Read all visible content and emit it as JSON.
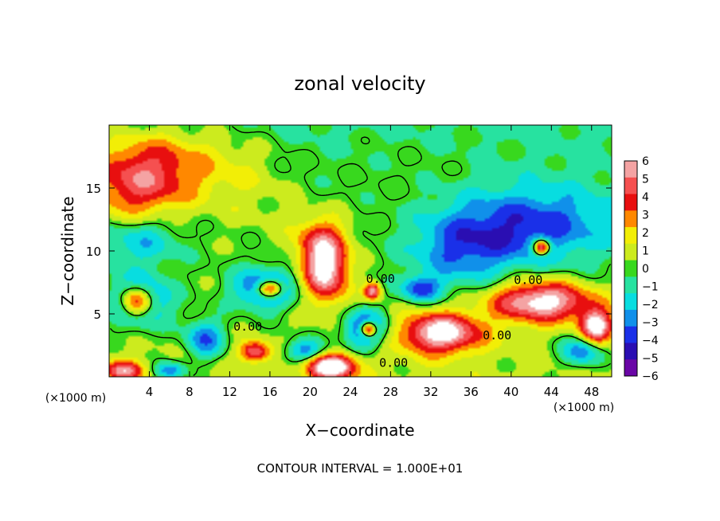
{
  "chart_data": {
    "type": "heatmap",
    "title": "zonal velocity",
    "xlabel": "X−coordinate",
    "ylabel": "Z−coordinate",
    "x_unit_label": "(×1000 m)",
    "x_unit_label_left": "(×1000 m)",
    "footer": "CONTOUR INTERVAL = 1.000E+01",
    "xlim": [
      0,
      50
    ],
    "ylim": [
      0,
      20
    ],
    "x_ticks": [
      4,
      8,
      12,
      16,
      20,
      24,
      28,
      32,
      36,
      40,
      44,
      48
    ],
    "y_ticks": [
      5,
      10,
      15
    ],
    "colorbar": {
      "levels": [
        6,
        5,
        4,
        3,
        2,
        1,
        0,
        -1,
        -2,
        -3,
        -4,
        -5,
        -6
      ],
      "labels": [
        "6",
        "5",
        "4",
        "3",
        "2",
        "1",
        "0",
        "−1",
        "−2",
        "−3",
        "−4",
        "−5",
        "−6"
      ],
      "colors": [
        "#f4a3a3",
        "#f55050",
        "#e80f0f",
        "#ff8800",
        "#f2ee06",
        "#cceb1e",
        "#38d81e",
        "#27e2a0",
        "#08dde0",
        "#1090ea",
        "#1a30e8",
        "#2a0eb2",
        "#6a06a6"
      ]
    },
    "contour_labels": [
      {
        "text": "0.00",
        "x": 27,
        "z": 7.8
      },
      {
        "text": "0.00",
        "x": 41.7,
        "z": 7.7
      },
      {
        "text": "0.00",
        "x": 13.8,
        "z": 4
      },
      {
        "text": "0.00",
        "x": 38.6,
        "z": 3.3
      },
      {
        "text": "0.00",
        "x": 28.3,
        "z": 1.1
      }
    ],
    "field_features": [
      {
        "x": 2.5,
        "z": 15,
        "value": 4,
        "sx": 5,
        "sz": 3.5
      },
      {
        "x": 6,
        "z": 17,
        "value": 3,
        "sx": 7,
        "sz": 3
      },
      {
        "x": 3,
        "z": 11,
        "value": -3,
        "sx": 4,
        "sz": 2
      },
      {
        "x": 3,
        "z": 6,
        "value": -5,
        "sx": 3,
        "sz": 2
      },
      {
        "x": 2.7,
        "z": 6,
        "value": 8,
        "sx": 1.6,
        "sz": 1.2
      },
      {
        "x": 9.5,
        "z": 3,
        "value": -4,
        "sx": 2,
        "sz": 1.6
      },
      {
        "x": 15.5,
        "z": 7,
        "value": -5,
        "sx": 3,
        "sz": 1.6
      },
      {
        "x": 16,
        "z": 7,
        "value": 8,
        "sx": 1.3,
        "sz": 0.7
      },
      {
        "x": 21.5,
        "z": 8.5,
        "value": 7,
        "sx": 2.2,
        "sz": 2.5
      },
      {
        "x": 21,
        "z": 11,
        "value": 3,
        "sx": 3,
        "sz": 2
      },
      {
        "x": 25.5,
        "z": 3.8,
        "value": -5,
        "sx": 2.2,
        "sz": 1.5
      },
      {
        "x": 25.8,
        "z": 3.8,
        "value": 8,
        "sx": 0.8,
        "sz": 0.6
      },
      {
        "x": 26.2,
        "z": 6.8,
        "value": 6,
        "sx": 0.8,
        "sz": 0.7
      },
      {
        "x": 33,
        "z": 3.5,
        "value": 7,
        "sx": 4,
        "sz": 1.6
      },
      {
        "x": 43,
        "z": 6,
        "value": 7,
        "sx": 5,
        "sz": 1.6
      },
      {
        "x": 48.5,
        "z": 4,
        "value": 7,
        "sx": 1.6,
        "sz": 1.3
      },
      {
        "x": 42,
        "z": 12,
        "value": -4,
        "sx": 8,
        "sz": 3
      },
      {
        "x": 43,
        "z": 10.3,
        "value": 8,
        "sx": 0.8,
        "sz": 0.6
      },
      {
        "x": 35,
        "z": 10,
        "value": -3,
        "sx": 5,
        "sz": 3
      },
      {
        "x": 31,
        "z": 7,
        "value": -4,
        "sx": 2,
        "sz": 1
      },
      {
        "x": 14.5,
        "z": 2,
        "value": 5,
        "sx": 1.5,
        "sz": 0.8
      },
      {
        "x": 22,
        "z": 0.8,
        "value": 8,
        "sx": 2.5,
        "sz": 1
      },
      {
        "x": 19.5,
        "z": 2,
        "value": -4,
        "sx": 2,
        "sz": 1
      },
      {
        "x": 47,
        "z": 2,
        "value": -4,
        "sx": 2,
        "sz": 1.2
      },
      {
        "x": 1.5,
        "z": 0.5,
        "value": 5,
        "sx": 2,
        "sz": 0.8
      },
      {
        "x": 6,
        "z": 0.5,
        "value": -4,
        "sx": 1.5,
        "sz": 0.7
      },
      {
        "x": 30,
        "z": 16,
        "value": 0.5,
        "sx": 10,
        "sz": 4
      },
      {
        "x": 14,
        "z": 15,
        "value": 1.2,
        "sx": 5,
        "sz": 4
      }
    ]
  }
}
